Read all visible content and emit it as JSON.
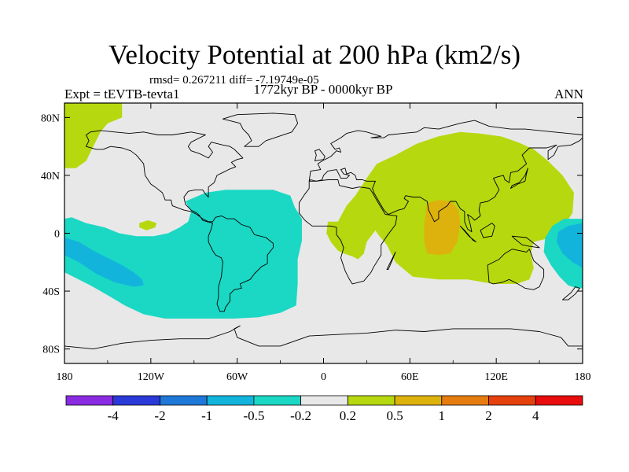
{
  "chart_data": {
    "type": "contour_map",
    "title": "Velocity Potential at 200 hPa (km2/s)",
    "stats_line": "rmsd= 0.267211 diff= -7.19749e-05",
    "period_label": "1772kyr BP - 0000kyr BP",
    "experiment_label": "Expt = tEVTB-tevta1",
    "season_label": "ANN",
    "x_axis": {
      "range": [
        -180,
        180
      ],
      "ticks": [
        -180,
        -120,
        -60,
        0,
        60,
        120,
        180
      ],
      "tick_labels": [
        "180",
        "120W",
        "60W",
        "0",
        "60E",
        "120E",
        "180"
      ]
    },
    "y_axis": {
      "range": [
        -90,
        90
      ],
      "ticks": [
        80,
        40,
        0,
        -40,
        -80
      ],
      "tick_labels": [
        "80N",
        "40N",
        "0",
        "40S",
        "80S"
      ]
    },
    "contour_levels": [
      "-4",
      "-2",
      "-1",
      "-0.5",
      "-0.2",
      "0.2",
      "0.5",
      "1",
      "2",
      "4"
    ],
    "colorbar_colors": [
      "#8a2be2",
      "#2a3ad8",
      "#1e78d8",
      "#12b4dc",
      "#1ad8c4",
      "#e8e8e8",
      "#b6d80e",
      "#deb20c",
      "#e67c10",
      "#e6400c",
      "#e80c0c"
    ],
    "regions": [
      {
        "name": "North Pacific / Alaska",
        "level": "0.2 to 0.5"
      },
      {
        "name": "Central North Pacific",
        "level": "0.2 to 0.5"
      },
      {
        "name": "Eurasia, Africa, Indian Ocean, Western Pacific",
        "level": "0.2 to 0.5"
      },
      {
        "name": "Indian Ocean / Bay of Bengal",
        "level": "0.5 to 1"
      },
      {
        "name": "Tropical Atlantic, South America",
        "level": "-0.5 to -0.2"
      },
      {
        "name": "Southeast Pacific",
        "level": "-0.5 to -0.2"
      },
      {
        "name": "Southeast Pacific core",
        "level": "-1 to -0.5"
      },
      {
        "name": "Western Pacific warm pool",
        "level": "-0.5 to -0.2"
      },
      {
        "name": "Western Pacific core",
        "level": "-1 to -0.5"
      }
    ]
  }
}
